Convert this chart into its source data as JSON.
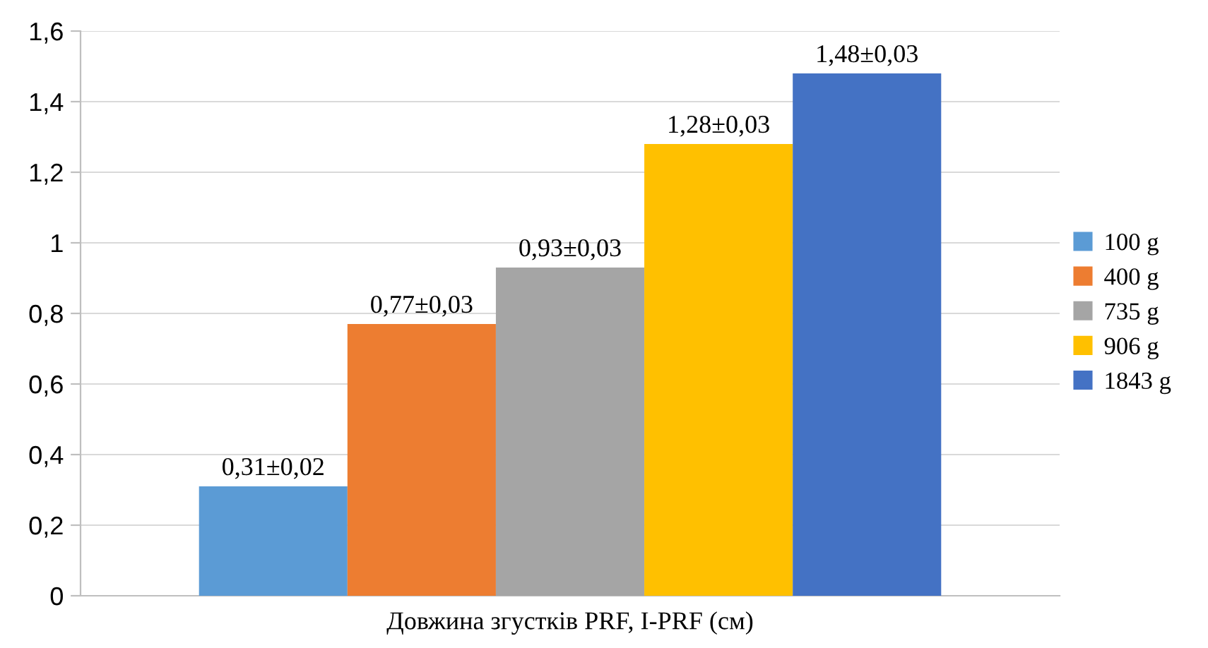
{
  "chart_data": {
    "type": "bar",
    "categories": [
      "Довжина згустків PRF, I-PRF (см)"
    ],
    "series": [
      {
        "name": "100 g",
        "color": "#5b9bd5",
        "values": [
          0.31
        ],
        "value_labels": [
          "0,31±0,02"
        ]
      },
      {
        "name": "400 g",
        "color": "#ed7d31",
        "values": [
          0.77
        ],
        "value_labels": [
          "0,77±0,03"
        ]
      },
      {
        "name": "735 g",
        "color": "#a5a5a5",
        "values": [
          0.93
        ],
        "value_labels": [
          "0,93±0,03"
        ]
      },
      {
        "name": "906 g",
        "color": "#ffc000",
        "values": [
          1.28
        ],
        "value_labels": [
          "1,28±0,03"
        ]
      },
      {
        "name": "1843 g",
        "color": "#4472c4",
        "values": [
          1.48
        ],
        "value_labels": [
          "1,48±0,03"
        ]
      }
    ],
    "ylim": [
      0,
      1.6
    ],
    "yticks": [
      0,
      {
        "value": 0.2,
        "label": "0,2"
      },
      {
        "value": 0.4,
        "label": "0,4"
      },
      {
        "value": 0.6,
        "label": "0,6"
      },
      {
        "value": 0.8,
        "label": "0,8"
      },
      1,
      {
        "value": 1.2,
        "label": "1,2"
      },
      {
        "value": 1.4,
        "label": "1,4"
      },
      {
        "value": 1.6,
        "label": "1,6"
      }
    ],
    "grid": "y",
    "legend": "right"
  }
}
